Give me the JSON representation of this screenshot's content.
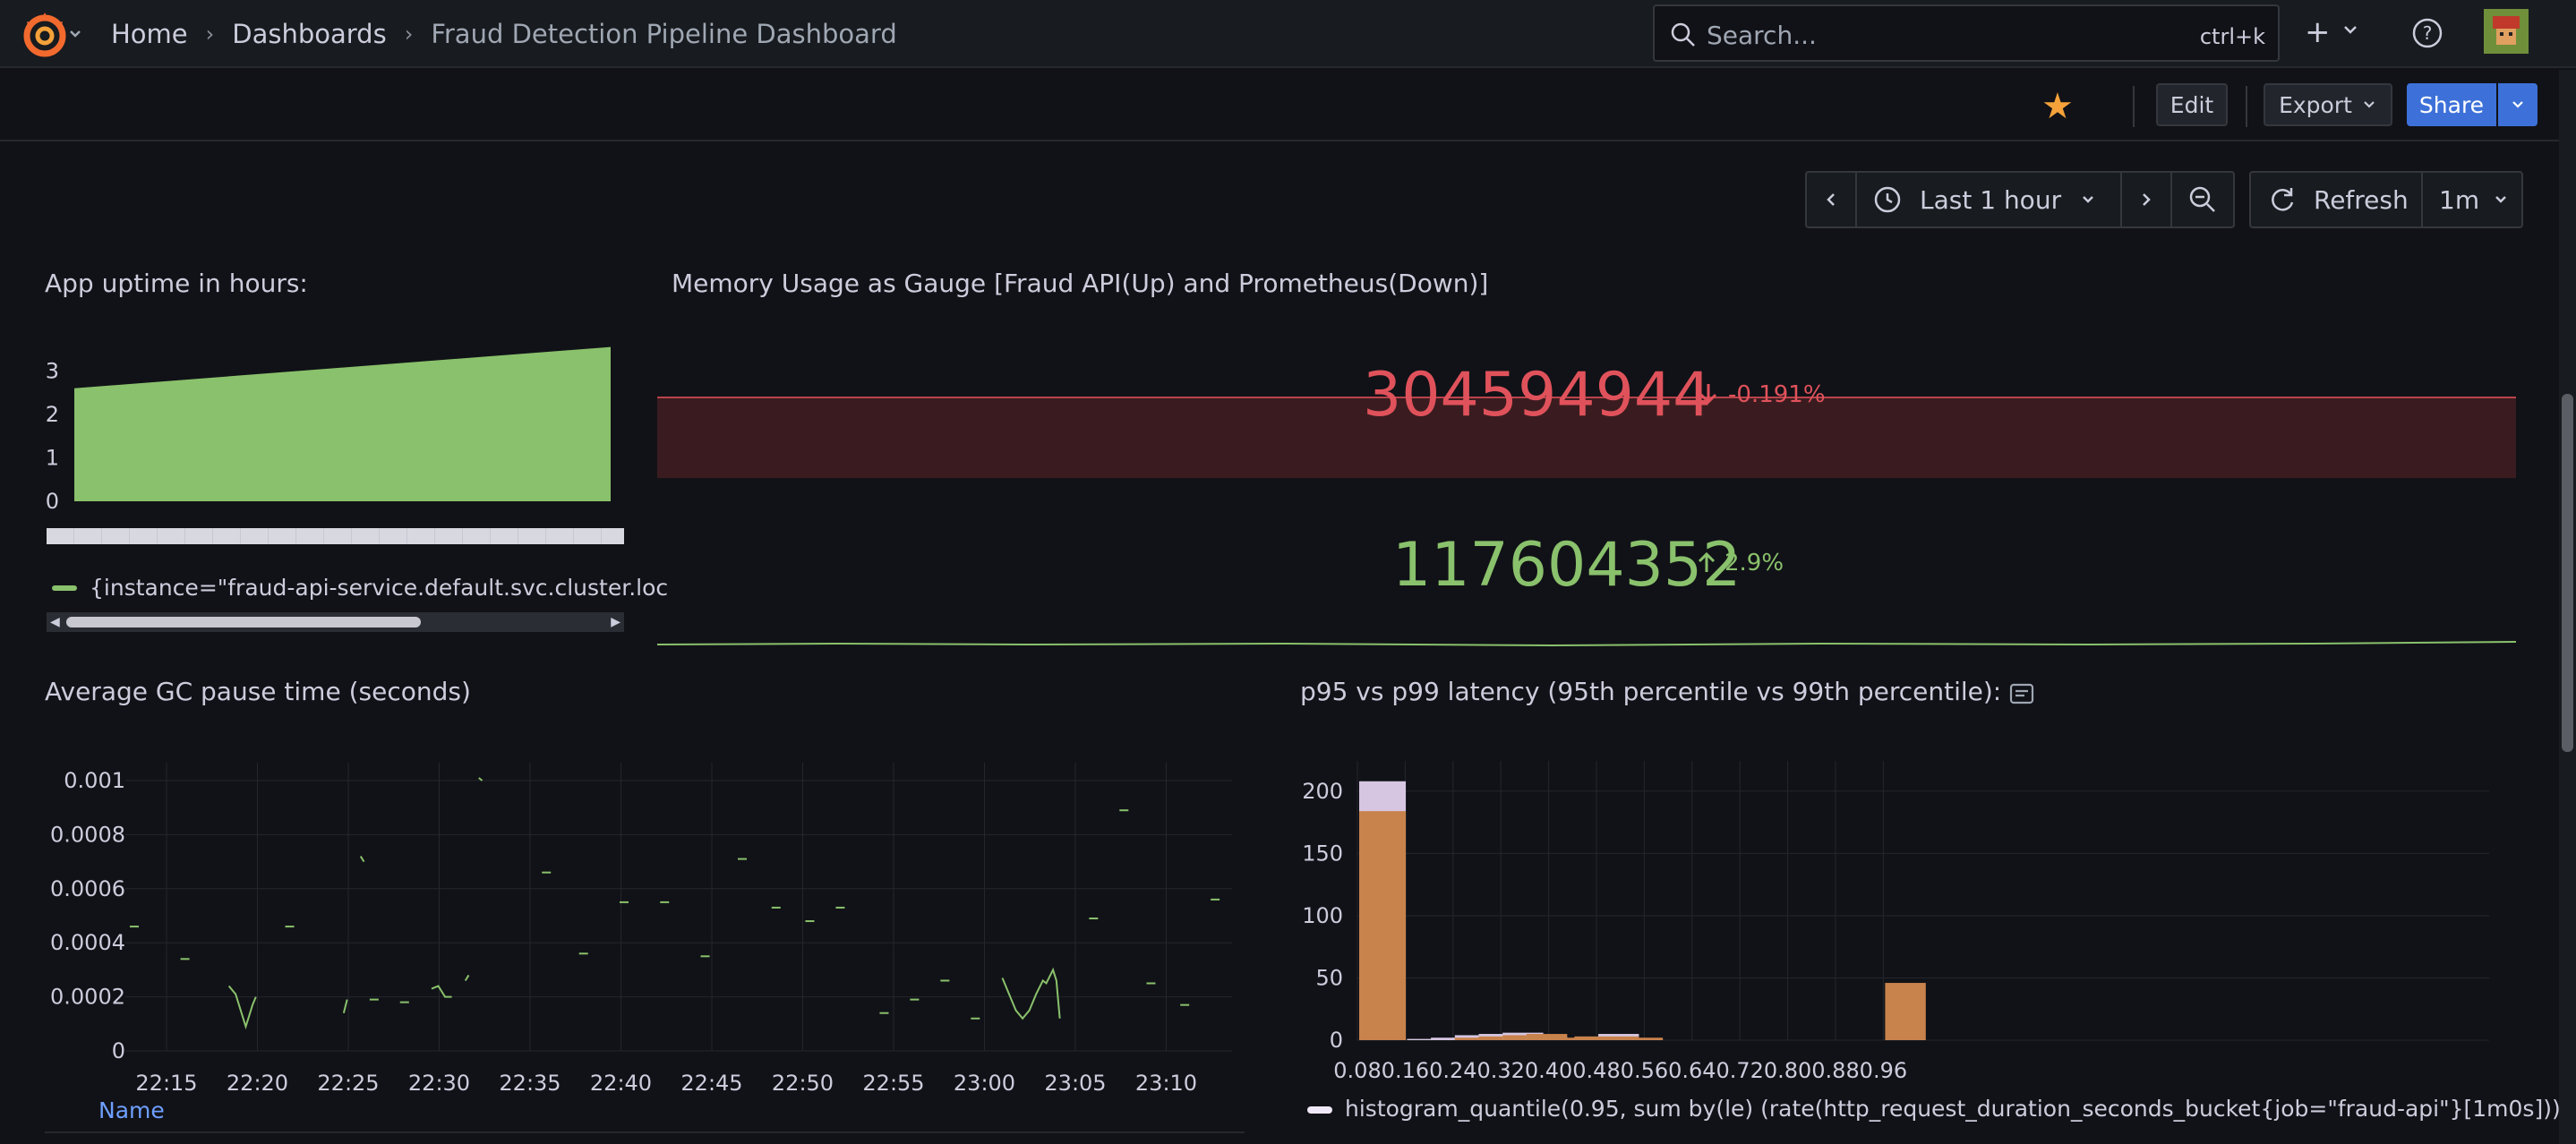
{
  "nav": {
    "breadcrumbs": [
      "Home",
      "Dashboards",
      "Fraud Detection Pipeline Dashboard"
    ],
    "search_placeholder": "Search...",
    "search_shortcut": "ctrl+k"
  },
  "toolbar": {
    "edit_label": "Edit",
    "export_label": "Export",
    "share_label": "Share",
    "starred": true
  },
  "time": {
    "range_label": "Last 1 hour",
    "refresh_label": "Refresh",
    "refresh_interval": "1m"
  },
  "panels": {
    "uptime": {
      "title": "App uptime in hours:",
      "legend": "{instance=\"fraud-api-service.default.svc.cluster.loc",
      "color": "#8ac16c",
      "chart_data": {
        "type": "area",
        "ylim": [
          0,
          3.5
        ],
        "y_ticks": [
          "3",
          "2",
          "1",
          "0"
        ],
        "start_value": 2.6,
        "end_value": 3.55
      }
    },
    "memory": {
      "title": "Memory Usage as Gauge [Fraud API(Up) and Prometheus(Down)]",
      "stats": [
        {
          "value": "304594944",
          "change": "-0.191%",
          "direction": "down",
          "color": "#e0525b"
        },
        {
          "value": "117604352",
          "change": "2.9%",
          "direction": "up",
          "color": "#8ac16c"
        }
      ]
    },
    "gc": {
      "title": "Average GC pause time (seconds)",
      "legend_header": "Name",
      "color": "#8ac16c",
      "chart_data": {
        "type": "line",
        "y_ticks": [
          "0.001",
          "0.0008",
          "0.0006",
          "0.0004",
          "0.0002",
          "0"
        ],
        "x_ticks": [
          "22:15",
          "22:20",
          "22:25",
          "22:30",
          "22:35",
          "22:40",
          "22:45",
          "22:50",
          "22:55",
          "23:00",
          "23:05",
          "23:10"
        ],
        "ylim": [
          0,
          0.001
        ],
        "segments": [
          [
            [
              0.0,
              0.00046
            ]
          ],
          [
            [
              1.5,
              0.00034
            ]
          ],
          [
            [
              2.8,
              0.00024
            ],
            [
              3.0,
              0.00021
            ],
            [
              3.3,
              9e-05
            ],
            [
              3.5,
              0.00017
            ],
            [
              3.6,
              0.0002
            ]
          ],
          [
            [
              4.6,
              0.00046
            ]
          ],
          [
            [
              6.2,
              0.00014
            ],
            [
              6.3,
              0.00019
            ]
          ],
          [
            [
              6.7,
              0.00072
            ],
            [
              6.8,
              0.0007
            ]
          ],
          [
            [
              7.1,
              0.00019
            ]
          ],
          [
            [
              8.0,
              0.00018
            ]
          ],
          [
            [
              8.8,
              0.00023
            ],
            [
              9.0,
              0.00024
            ],
            [
              9.2,
              0.0002
            ],
            [
              9.4,
              0.0002
            ]
          ],
          [
            [
              9.8,
              0.00026
            ],
            [
              9.9,
              0.00028
            ]
          ],
          [
            [
              10.2,
              0.00101
            ],
            [
              10.3,
              0.001
            ]
          ],
          [
            [
              12.2,
              0.00066
            ]
          ],
          [
            [
              13.3,
              0.00036
            ]
          ],
          [
            [
              14.5,
              0.00055
            ]
          ],
          [
            [
              15.7,
              0.00055
            ]
          ],
          [
            [
              16.9,
              0.00035
            ]
          ],
          [
            [
              18.0,
              0.00071
            ]
          ],
          [
            [
              19.0,
              0.00053
            ]
          ],
          [
            [
              20.0,
              0.00048
            ]
          ],
          [
            [
              20.9,
              0.00053
            ]
          ],
          [
            [
              22.2,
              0.00014
            ]
          ],
          [
            [
              23.1,
              0.00019
            ]
          ],
          [
            [
              24.0,
              0.00026
            ]
          ],
          [
            [
              24.9,
              0.00012
            ]
          ],
          [
            [
              25.7,
              0.00027
            ],
            [
              25.9,
              0.00021
            ],
            [
              26.1,
              0.00015
            ],
            [
              26.3,
              0.00012
            ],
            [
              26.5,
              0.00015
            ],
            [
              26.7,
              0.00021
            ],
            [
              26.9,
              0.00026
            ],
            [
              27.0,
              0.00025
            ],
            [
              27.2,
              0.0003
            ],
            [
              27.3,
              0.00026
            ],
            [
              27.4,
              0.00012
            ]
          ],
          [
            [
              28.4,
              0.00049
            ]
          ],
          [
            [
              29.3,
              0.00089
            ]
          ],
          [
            [
              30.1,
              0.00025
            ]
          ],
          [
            [
              31.1,
              0.00017
            ]
          ],
          [
            [
              32.0,
              0.00056
            ]
          ]
        ]
      }
    },
    "latency": {
      "title": "p95 vs p99 latency (95th percentile vs 99th percentile):",
      "legend_p95": "histogram_quantile(0.95, sum by(le) (rate(http_request_duration_seconds_bucket{job=\"fraud-api\"}[1m0s])))",
      "p95_color": "#d6c6e1",
      "p99_color": "#c8824c",
      "chart_data": {
        "type": "bar",
        "ylim": [
          0,
          210
        ],
        "y_ticks": [
          "200",
          "150",
          "100",
          "50",
          "0"
        ],
        "x_ticks": [
          "0.08",
          "0.16",
          "0.24",
          "0.32",
          "0.40",
          "0.48",
          "0.56",
          "0.64",
          "0.72",
          "0.80",
          "0.88",
          "0.96"
        ],
        "bin_width": 0.04,
        "bins": [
          {
            "x": 0.08,
            "p95": 208,
            "p99": 184
          },
          {
            "x": 0.12,
            "p95": 0,
            "p99": 0
          },
          {
            "x": 0.16,
            "p95": 1,
            "p99": 0
          },
          {
            "x": 0.2,
            "p95": 2,
            "p99": 0
          },
          {
            "x": 0.24,
            "p95": 4,
            "p99": 2
          },
          {
            "x": 0.28,
            "p95": 5,
            "p99": 3
          },
          {
            "x": 0.32,
            "p95": 6,
            "p99": 4
          },
          {
            "x": 0.36,
            "p95": 3,
            "p99": 5
          },
          {
            "x": 0.4,
            "p95": 1,
            "p99": 2
          },
          {
            "x": 0.44,
            "p95": 1,
            "p99": 3
          },
          {
            "x": 0.48,
            "p95": 5,
            "p99": 3
          },
          {
            "x": 0.52,
            "p95": 1,
            "p99": 2
          },
          {
            "x": 0.96,
            "p95": 0,
            "p99": 46
          }
        ]
      }
    }
  }
}
